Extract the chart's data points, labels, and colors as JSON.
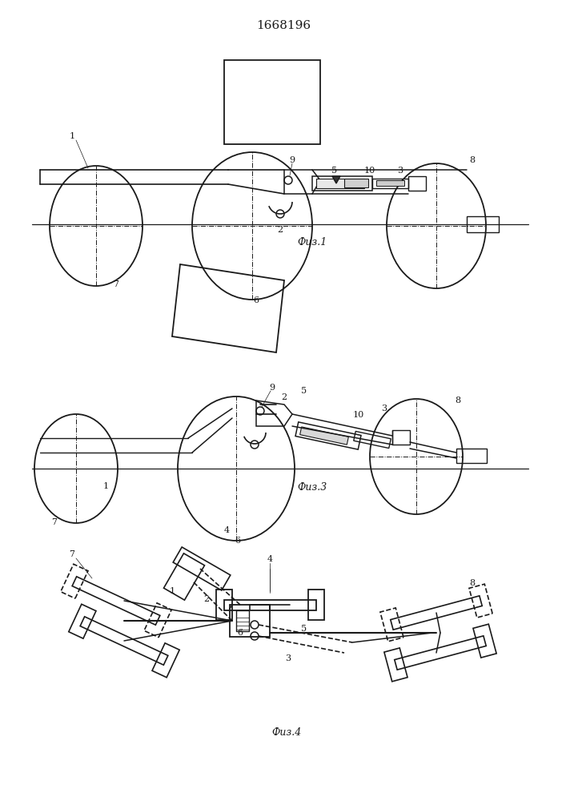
{
  "title": "1668196",
  "title_fontsize": 11,
  "background_color": "#ffffff",
  "line_color": "#1a1a1a",
  "fig1_caption": "Физ.1",
  "fig3_caption": "Физ.3",
  "fig4_caption": "Физ.4"
}
